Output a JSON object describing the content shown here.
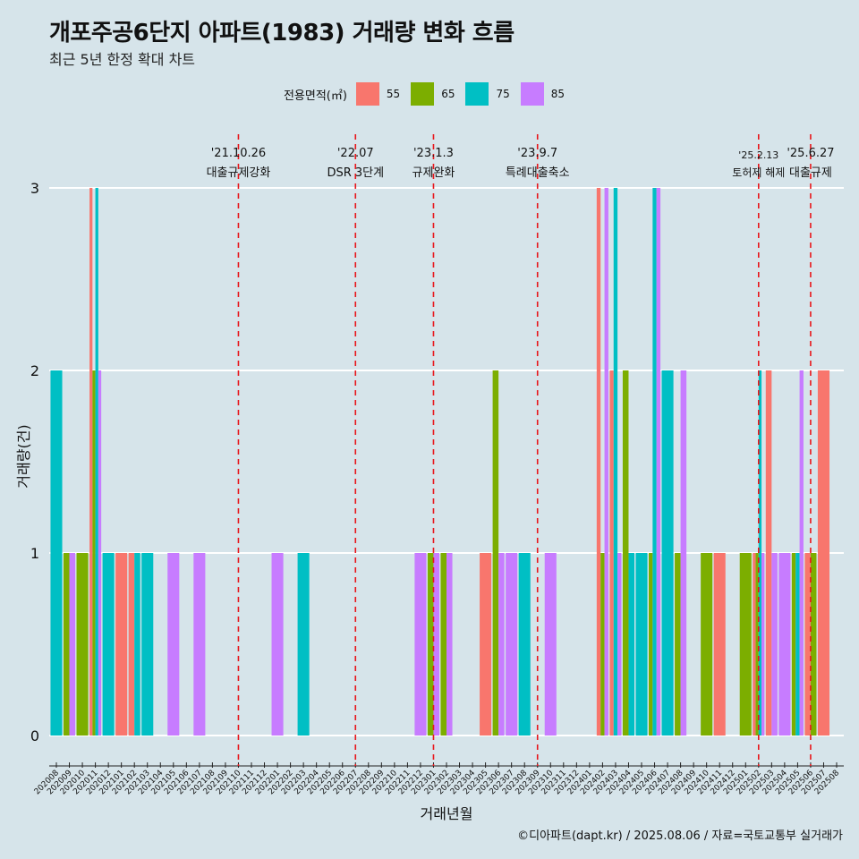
{
  "title": "개포주공6단지 아파트(1983) 거래량 변화 흐름",
  "subtitle": "최근 5년 한정 확대 차트",
  "legend": {
    "title": "전용면적(㎡)",
    "items": [
      {
        "label": "55",
        "color": "#F8766D"
      },
      {
        "label": "65",
        "color": "#7CAE00"
      },
      {
        "label": "75",
        "color": "#00BFC4"
      },
      {
        "label": "85",
        "color": "#C77CFF"
      }
    ]
  },
  "caption": "©디아파트(dapt.kr) / 2025.08.06 / 자료=국토교통부 실거래가",
  "chart_data": {
    "type": "bar",
    "xlabel": "거래년월",
    "ylabel": "거래량(건)",
    "ylim": [
      0,
      3
    ],
    "y_ticks": [
      0,
      1,
      2,
      3
    ],
    "grid": true,
    "categories": [
      "202008",
      "202009",
      "202010",
      "202011",
      "202012",
      "202101",
      "202102",
      "202103",
      "202104",
      "202105",
      "202106",
      "202107",
      "202108",
      "202109",
      "202110",
      "202111",
      "202112",
      "202201",
      "202202",
      "202203",
      "202204",
      "202205",
      "202206",
      "202207",
      "202208",
      "202209",
      "202210",
      "202211",
      "202212",
      "202301",
      "202302",
      "202303",
      "202304",
      "202305",
      "202306",
      "202307",
      "202308",
      "202309",
      "202310",
      "202311",
      "202312",
      "202401",
      "202402",
      "202403",
      "202404",
      "202405",
      "202406",
      "202407",
      "202408",
      "202409",
      "202410",
      "202411",
      "202412",
      "202501",
      "202502",
      "202503",
      "202504",
      "202505",
      "202506",
      "202507",
      "202508"
    ],
    "series": [
      {
        "name": "55",
        "color": "#F8766D",
        "values": [
          0,
          0,
          0,
          3,
          0,
          1,
          1,
          0,
          0,
          0,
          0,
          0,
          0,
          0,
          0,
          0,
          0,
          0,
          0,
          0,
          0,
          0,
          0,
          0,
          0,
          0,
          0,
          0,
          0,
          0,
          0,
          0,
          0,
          1,
          0,
          0,
          0,
          0,
          0,
          0,
          0,
          0,
          3,
          2,
          0,
          0,
          0,
          0,
          0,
          0,
          0,
          1,
          0,
          0,
          1,
          2,
          0,
          0,
          1,
          2,
          0
        ]
      },
      {
        "name": "65",
        "color": "#7CAE00",
        "values": [
          0,
          1,
          1,
          2,
          0,
          0,
          0,
          0,
          0,
          0,
          0,
          0,
          0,
          0,
          0,
          0,
          0,
          0,
          0,
          0,
          0,
          0,
          0,
          0,
          0,
          0,
          0,
          0,
          0,
          1,
          1,
          0,
          0,
          0,
          2,
          0,
          0,
          0,
          0,
          0,
          0,
          0,
          1,
          0,
          2,
          0,
          1,
          0,
          1,
          0,
          1,
          0,
          0,
          1,
          1,
          0,
          0,
          1,
          1,
          0,
          0
        ]
      },
      {
        "name": "75",
        "color": "#00BFC4",
        "values": [
          2,
          0,
          0,
          3,
          1,
          0,
          1,
          1,
          0,
          0,
          0,
          0,
          0,
          0,
          0,
          0,
          0,
          0,
          0,
          1,
          0,
          0,
          0,
          0,
          0,
          0,
          0,
          0,
          0,
          0,
          0,
          0,
          0,
          0,
          0,
          0,
          1,
          0,
          0,
          0,
          0,
          0,
          0,
          3,
          1,
          1,
          3,
          2,
          0,
          0,
          0,
          0,
          0,
          0,
          2,
          0,
          0,
          1,
          0,
          0,
          0
        ]
      },
      {
        "name": "85",
        "color": "#C77CFF",
        "values": [
          0,
          1,
          0,
          2,
          0,
          0,
          0,
          0,
          0,
          1,
          0,
          1,
          0,
          0,
          0,
          0,
          0,
          1,
          0,
          0,
          0,
          0,
          0,
          0,
          0,
          0,
          0,
          0,
          1,
          1,
          1,
          0,
          0,
          0,
          1,
          1,
          0,
          0,
          1,
          0,
          0,
          0,
          3,
          1,
          0,
          0,
          3,
          0,
          2,
          0,
          0,
          0,
          0,
          0,
          1,
          1,
          1,
          2,
          0,
          0,
          0
        ]
      }
    ],
    "events": [
      {
        "month": "202110",
        "date": "'21.10.26",
        "label": "대출규제강화"
      },
      {
        "month": "202207",
        "date": "'22.07",
        "label": "DSR 3단계"
      },
      {
        "month": "202301",
        "date": "'23.1.3",
        "label": "규제완화"
      },
      {
        "month": "202309",
        "date": "'23.9.7",
        "label": "특례대출축소"
      },
      {
        "month": "202502",
        "date": "'25.2.13",
        "label": "토허제 해제"
      },
      {
        "month": "202506",
        "date": "'25.6.27",
        "label": "대출규제"
      }
    ]
  }
}
